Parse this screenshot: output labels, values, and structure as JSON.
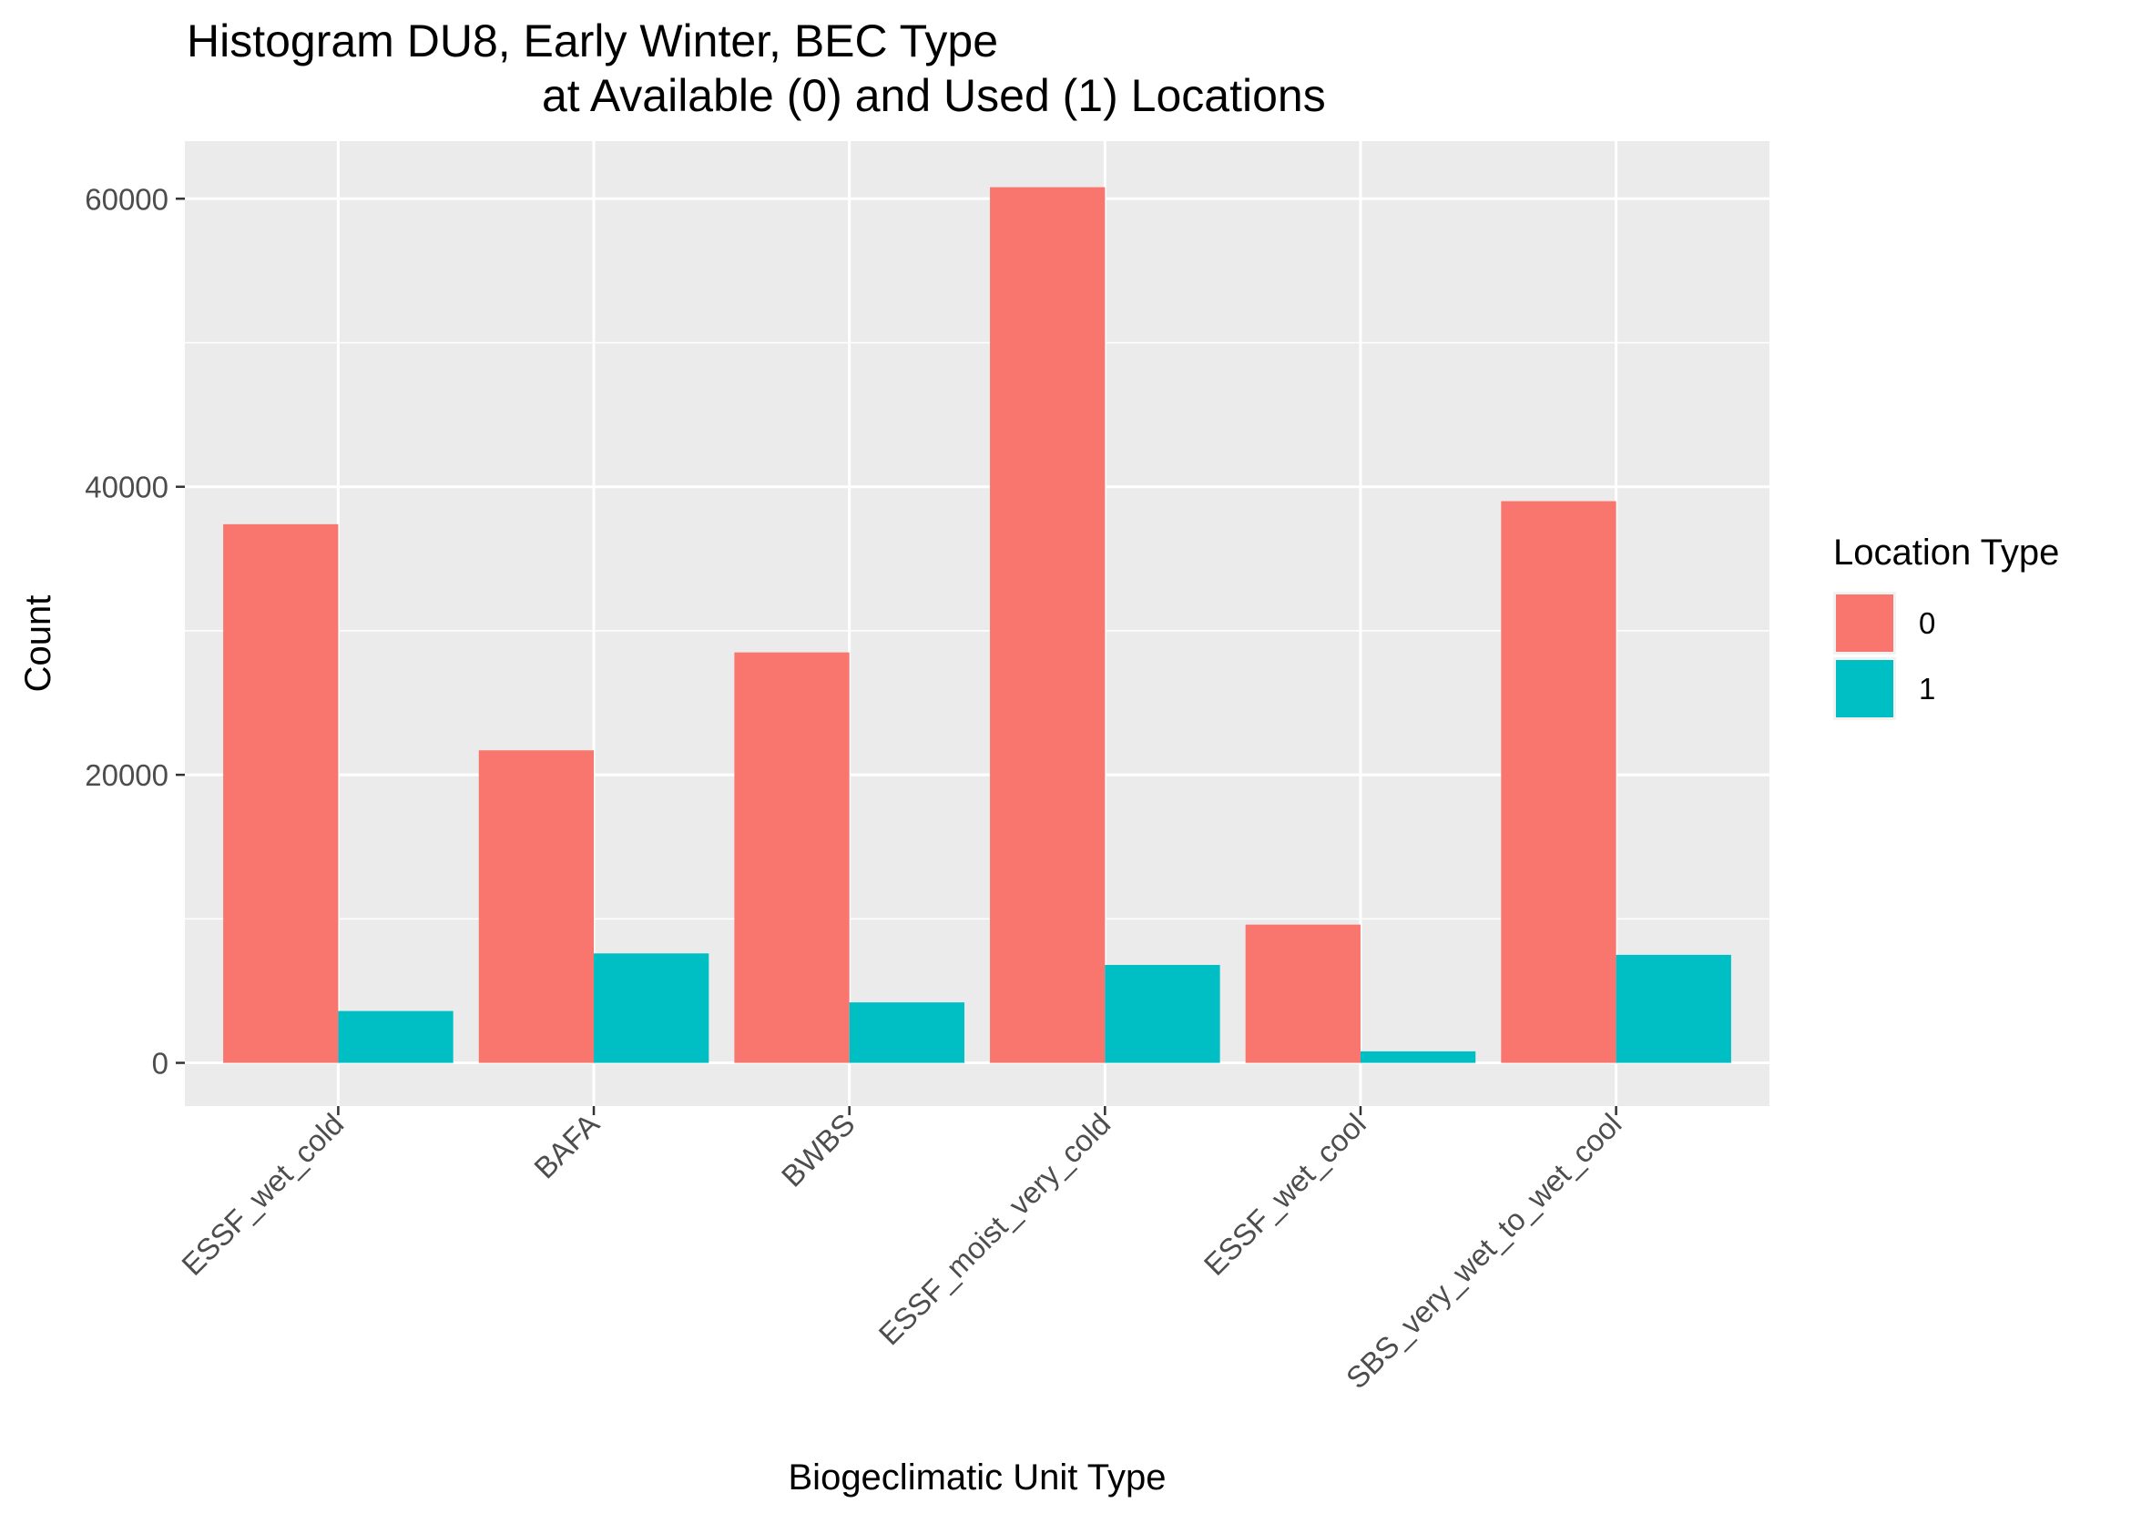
{
  "chart_data": {
    "type": "bar",
    "title_line1": "Histogram DU8, Early Winter, BEC Type",
    "title_line2": "at Available (0) and Used (1) Locations",
    "xlabel": "Biogeclimatic Unit Type",
    "ylabel": "Count",
    "categories": [
      "ESSF_wet_cold",
      "BAFA",
      "BWBS",
      "ESSF_moist_very_cold",
      "ESSF_wet_cool",
      "SBS_very_wet_to_wet_cool"
    ],
    "series": [
      {
        "name": "0",
        "color": "#F8766D",
        "values": [
          37400,
          21700,
          28500,
          60800,
          9600,
          39000
        ]
      },
      {
        "name": "1",
        "color": "#00BFC4",
        "values": [
          3600,
          7600,
          4200,
          6800,
          800,
          7500
        ]
      }
    ],
    "ylim": [
      -3000,
      64000
    ],
    "yticks": [
      0,
      20000,
      40000,
      60000
    ],
    "ytick_labels": [
      "0",
      "20000",
      "40000",
      "60000"
    ],
    "grid": true,
    "legend": {
      "title": "Location Type",
      "position": "right"
    }
  }
}
